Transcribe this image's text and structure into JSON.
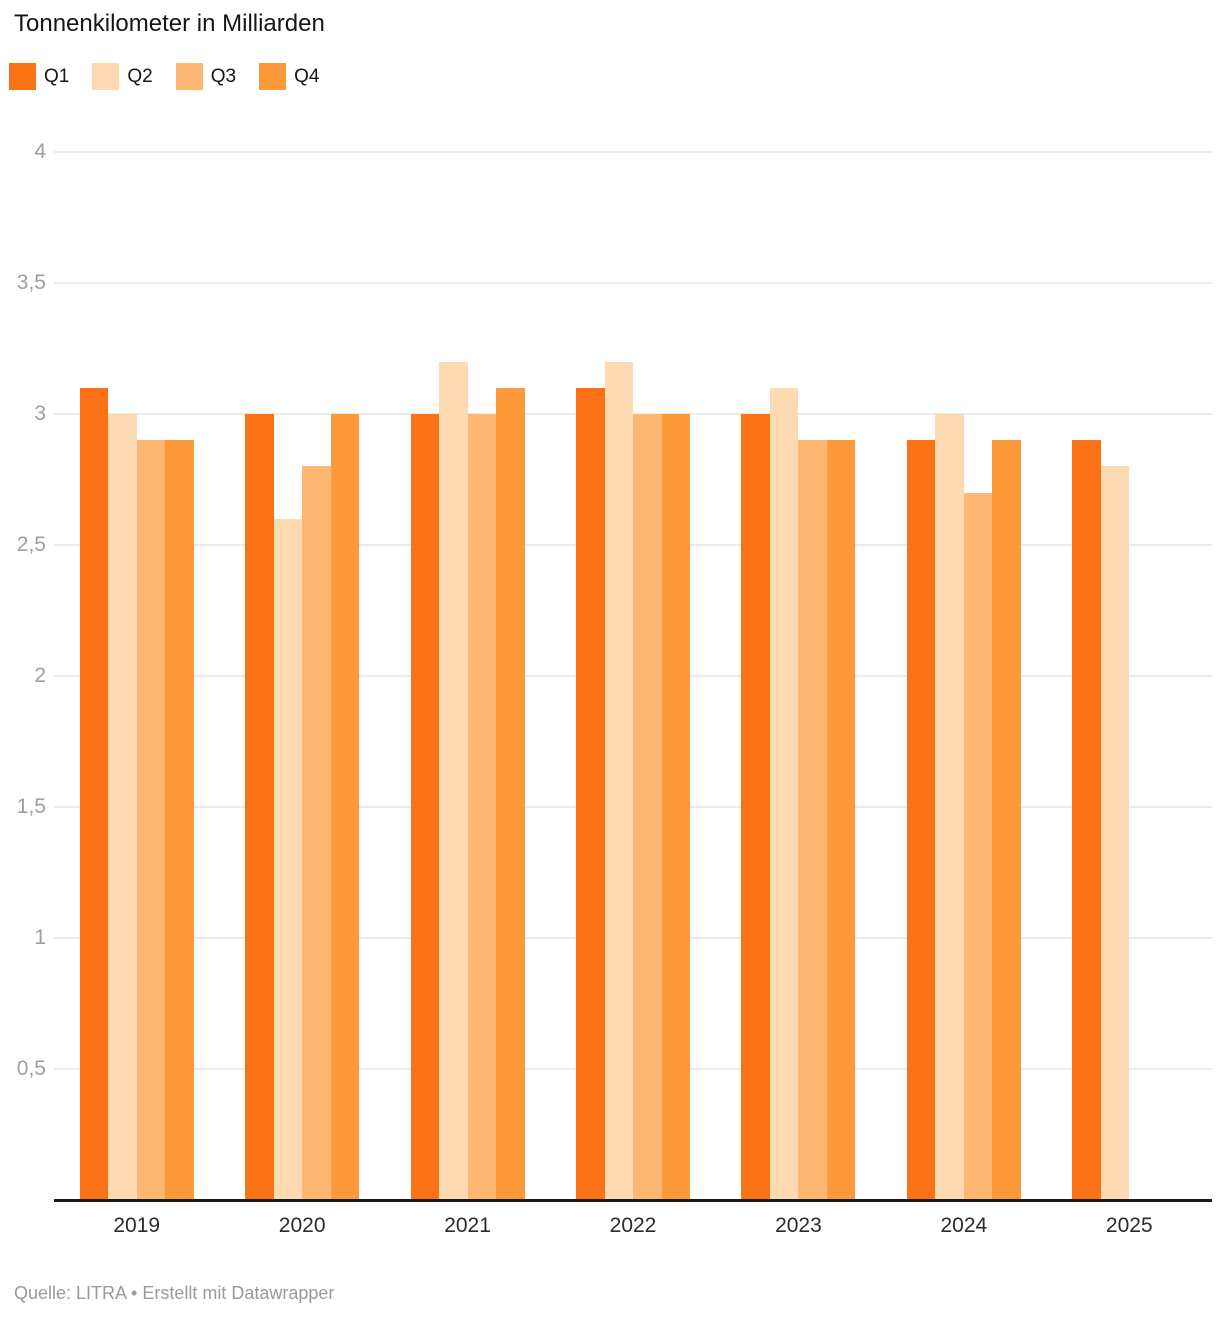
{
  "title": "Tonnenkilometer in Milliarden",
  "footer": "Quelle: LITRA • Erstellt mit Datawrapper",
  "legend": [
    {
      "label": "Q1",
      "color": "#FB7116"
    },
    {
      "label": "Q2",
      "color": "#FDDAB2"
    },
    {
      "label": "Q3",
      "color": "#FCB873"
    },
    {
      "label": "Q4",
      "color": "#FC9938"
    }
  ],
  "chart_data": {
    "type": "bar",
    "title": "Tonnenkilometer in Milliarden",
    "categories": [
      "2019",
      "2020",
      "2021",
      "2022",
      "2023",
      "2024",
      "2025"
    ],
    "series": [
      {
        "name": "Q1",
        "color": "#FB7116",
        "values": [
          3.1,
          3.0,
          3.0,
          3.1,
          3.0,
          2.9,
          2.9
        ]
      },
      {
        "name": "Q2",
        "color": "#FDDAB2",
        "values": [
          3.0,
          2.6,
          3.2,
          3.2,
          3.1,
          3.0,
          2.8
        ]
      },
      {
        "name": "Q3",
        "color": "#FCB873",
        "values": [
          2.9,
          2.8,
          3.0,
          3.0,
          2.9,
          2.7,
          null
        ]
      },
      {
        "name": "Q4",
        "color": "#FC9938",
        "values": [
          2.9,
          3.0,
          3.1,
          3.0,
          2.9,
          2.9,
          null
        ]
      }
    ],
    "ylim": [
      0,
      4
    ],
    "yticks": [
      {
        "value": 4,
        "label": "4"
      },
      {
        "value": 3.5,
        "label": "3,5"
      },
      {
        "value": 3,
        "label": "3"
      },
      {
        "value": 2.5,
        "label": "2,5"
      },
      {
        "value": 2,
        "label": "2"
      },
      {
        "value": 1.5,
        "label": "1,5"
      },
      {
        "value": 1,
        "label": "1"
      },
      {
        "value": 0.5,
        "label": "0,5"
      }
    ],
    "grid": true,
    "legend_position": "top",
    "source": "Quelle: LITRA",
    "made_with": "Erstellt mit Datawrapper"
  }
}
